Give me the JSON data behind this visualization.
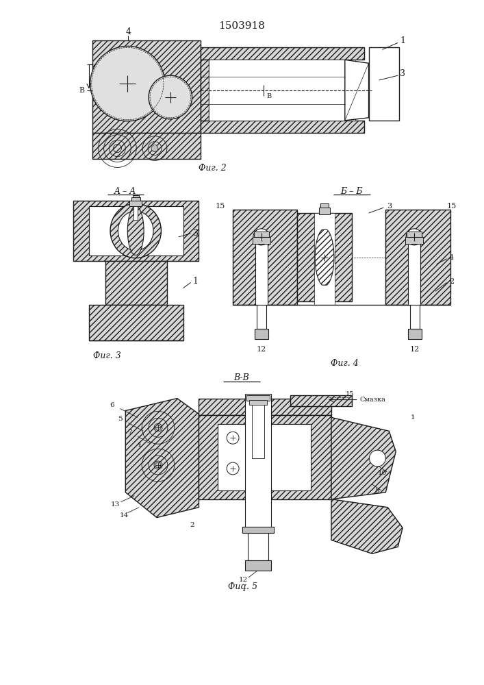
{
  "title": "1503918",
  "background_color": "#ffffff",
  "line_color": "#1a1a1a",
  "fig2_label": "Фиг. 2",
  "fig3_label": "Фиг. 3",
  "fig4_label": "Фиг. 4",
  "fig5_label": "Фиգ. 5",
  "section_aa": "A – A",
  "section_bb": "Б – Б",
  "smazka": "Смазка"
}
